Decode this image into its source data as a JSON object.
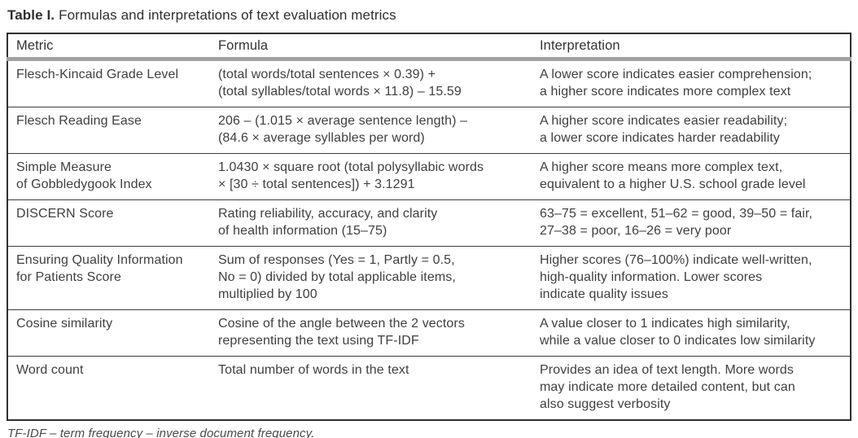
{
  "title": {
    "label": "Table I.",
    "text": "Formulas and interpretations of text evaluation metrics"
  },
  "table": {
    "headers": [
      "Metric",
      "Formula",
      "Interpretation"
    ],
    "rows": [
      {
        "metric": "Flesch-Kincaid Grade Level",
        "formula": "(total words/total sentences × 0.39) +\n(total syllables/total words × 11.8) – 15.59",
        "interpretation": "A lower score indicates easier comprehension;\na higher score indicates more complex text"
      },
      {
        "metric": "Flesch Reading Ease",
        "formula": "206 – (1.015 × average sentence length) –\n(84.6 × average syllables per word)",
        "interpretation": "A higher score indicates easier readability;\na lower score indicates harder readability"
      },
      {
        "metric": "Simple Measure\nof Gobbledygook Index",
        "formula": "1.0430 × square root (total polysyllabic words\n× [30 ÷ total sentences]) + 3.1291",
        "interpretation": "A higher score means more complex text,\nequivalent to a higher U.S. school grade level"
      },
      {
        "metric": "DISCERN Score",
        "formula": "Rating reliability, accuracy, and clarity\nof health information (15–75)",
        "interpretation": "63–75 = excellent, 51–62 = good, 39–50 = fair,\n27–38 = poor, 16–26 = very poor"
      },
      {
        "metric": "Ensuring Quality Information\nfor Patients Score",
        "formula": "Sum of responses (Yes = 1, Partly = 0.5,\nNo = 0) divided by total applicable items,\nmultiplied by 100",
        "interpretation": "Higher scores (76–100%) indicate well-written,\nhigh-quality information. Lower scores\nindicate quality issues"
      },
      {
        "metric": "Cosine similarity",
        "formula": "Cosine of the angle between the 2 vectors\nrepresenting the text using TF-IDF",
        "interpretation": "A value closer to 1 indicates high similarity,\nwhile a value closer to 0 indicates low similarity"
      },
      {
        "metric": "Word count",
        "formula": "Total number of words in the text",
        "interpretation": "Provides an idea of text length. More words\nmay indicate more detailed content, but can\nalso suggest verbosity"
      }
    ]
  },
  "footnote": "TF-IDF – term frequency – inverse document frequency."
}
